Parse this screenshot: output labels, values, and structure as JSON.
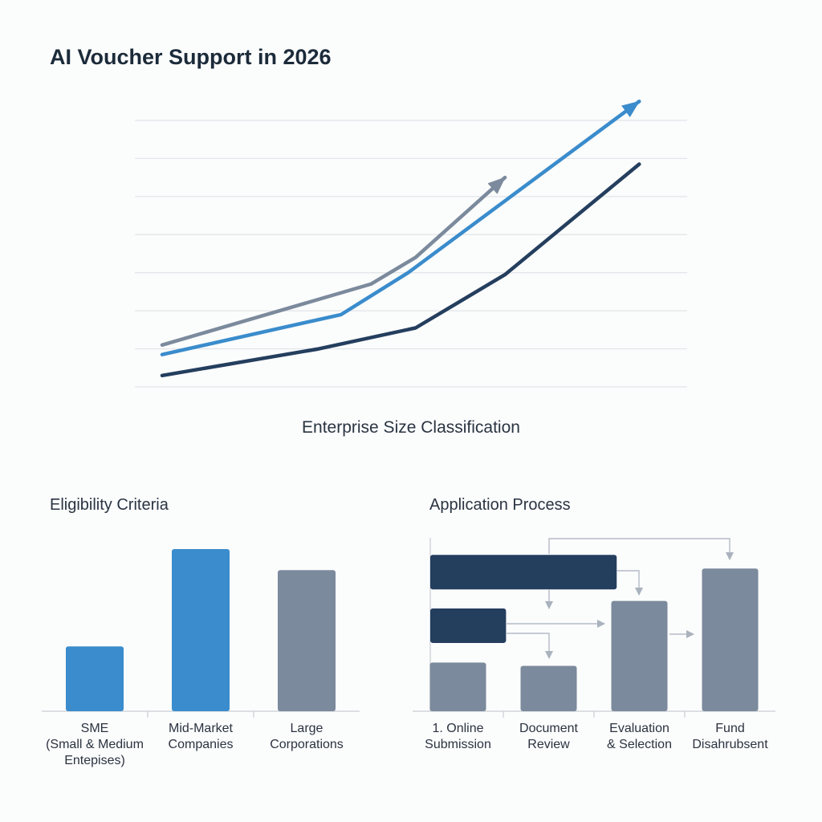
{
  "title": "AI Voucher Support in 2026",
  "colors": {
    "navy": "#243e5e",
    "blue": "#3a8ccc",
    "slate": "#7b8a9c",
    "grid": "#e1e4e8"
  },
  "chart_data": [
    {
      "type": "line",
      "title": "",
      "xlabel": "Enterprise Size Classification",
      "ylabel": "",
      "ylim": [
        0,
        7
      ],
      "xlim": [
        0,
        7
      ],
      "grid": true,
      "series": [
        {
          "color": "#7b8a9c",
          "arrow": true,
          "x": [
            0,
            2.8,
            3.4,
            4.6
          ],
          "y": [
            1.1,
            2.7,
            3.4,
            5.5
          ]
        },
        {
          "color": "#3a8ccc",
          "arrow": true,
          "x": [
            0,
            2.4,
            3.3,
            6.4
          ],
          "y": [
            0.85,
            1.9,
            3.0,
            7.5
          ]
        },
        {
          "color": "#243e5e",
          "arrow": false,
          "x": [
            0,
            2.1,
            3.4,
            4.6,
            6.4
          ],
          "y": [
            0.3,
            1.0,
            1.55,
            2.95,
            5.85
          ]
        }
      ]
    },
    {
      "type": "bar",
      "title": "Eligibility Criteria",
      "categories": [
        "SME\n(Small & Medium\nEntepises)",
        "Mid-Market\nCompanies",
        "Large\nCorporations"
      ],
      "values": [
        0.4,
        1.0,
        0.87
      ],
      "colors": [
        "#3a8ccc",
        "#3a8ccc",
        "#7b8a9c"
      ]
    },
    {
      "type": "bar",
      "title": "Application Process",
      "categories": [
        "1. Online\nSubmission",
        "Document\nReview",
        "Evaluation\n& Selection",
        "Fund\nDisahrubsent"
      ],
      "values": [
        0.3,
        0.28,
        0.68,
        0.88
      ],
      "colors": [
        "#7b8a9c",
        "#7b8a9c",
        "#7b8a9c",
        "#7b8a9c"
      ],
      "horizontal_bars": [
        {
          "span": [
            0,
            2.05
          ],
          "level": 0.86,
          "color": "#243e5e"
        },
        {
          "span": [
            0,
            0.83
          ],
          "level": 0.53,
          "color": "#243e5e"
        }
      ]
    }
  ]
}
